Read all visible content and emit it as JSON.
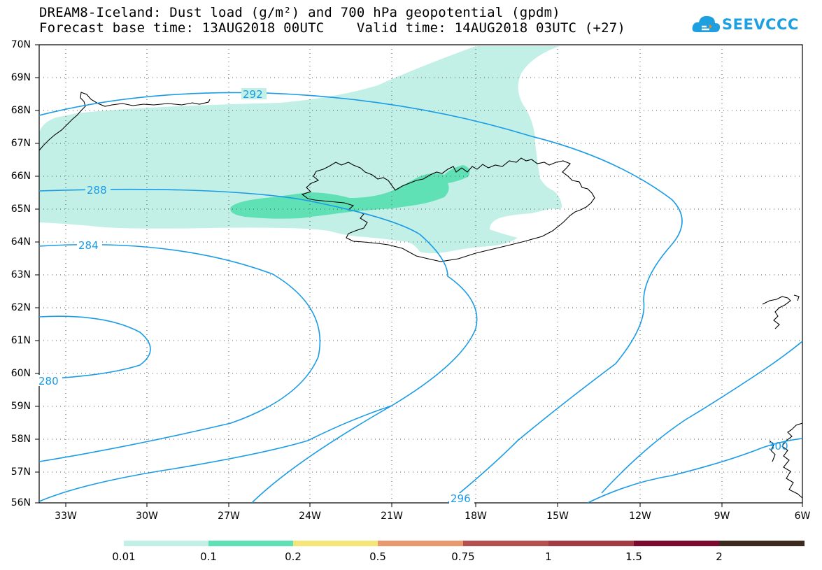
{
  "title_line1": "DREAM8-Iceland: Dust load (g/m²) and 700 hPa geopotential (gpdm)",
  "title_line2": "Forecast base time: 13AUG2018 00UTC    Valid time: 14AUG2018 03UTC (+27)",
  "logo_text": "SEEVCCC",
  "lat_labels": [
    "70N",
    "69N",
    "68N",
    "67N",
    "66N",
    "65N",
    "64N",
    "63N",
    "62N",
    "61N",
    "60N",
    "59N",
    "58N",
    "57N",
    "56N"
  ],
  "lon_labels": [
    "33W",
    "30W",
    "27W",
    "24W",
    "21W",
    "18W",
    "15W",
    "12W",
    "9W",
    "6W"
  ],
  "contour_labels": [
    "292",
    "288",
    "284",
    "280",
    "296",
    "300"
  ],
  "colorbar": {
    "colors": [
      "#c2f0e6",
      "#5fe0b5",
      "#f5e67a",
      "#e89a6e",
      "#b5514e",
      "#a23b43",
      "#7a0a2e",
      "#3c2a1f",
      "#9b71a8"
    ],
    "labels": [
      "0.01",
      "0.1",
      "0.2",
      "0.5",
      "0.75",
      "1",
      "1.5",
      "2"
    ]
  },
  "colors": {
    "contour": "#1a9be6",
    "coast": "#000000",
    "dust_low": "#c2f0e6",
    "dust_mid": "#5fe0b5"
  }
}
